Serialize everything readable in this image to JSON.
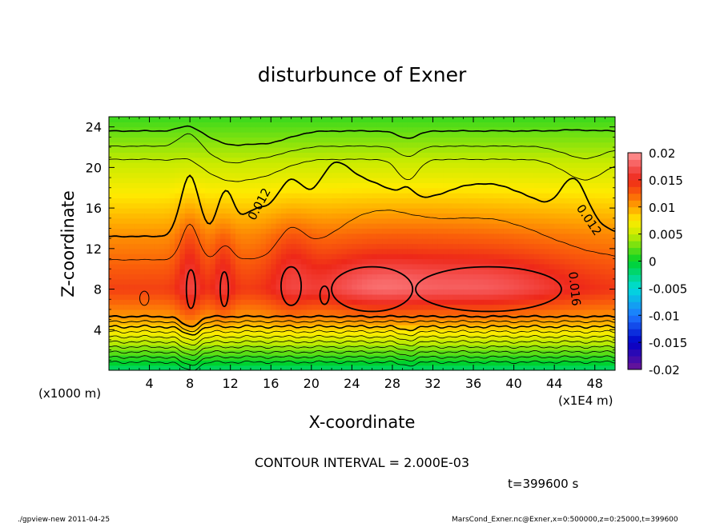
{
  "chart_data": {
    "type": "heatmap",
    "title": "disturbunce of Exner",
    "xlabel": "X-coordinate",
    "ylabel": "Z-coordinate",
    "x_unit_label": "(x1E4 m)",
    "y_unit_label": "(x1000 m)",
    "xlim": [
      0,
      50
    ],
    "ylim": [
      0,
      25
    ],
    "x_ticks": [
      4,
      8,
      12,
      16,
      20,
      24,
      28,
      32,
      36,
      40,
      44,
      48
    ],
    "y_ticks": [
      4,
      8,
      12,
      16,
      20,
      24
    ],
    "x_tick_labels": [
      "4",
      "8",
      "12",
      "16",
      "20",
      "24",
      "28",
      "32",
      "36",
      "40",
      "44",
      "48"
    ],
    "y_tick_labels": [
      "4",
      "8",
      "12",
      "16",
      "20",
      "24"
    ],
    "contour_interval_text": "CONTOUR INTERVAL = 2.000E-03",
    "time_text": "t=399600 s",
    "contour_labels": [
      {
        "text": "0.012",
        "x": 15.2,
        "z": 16.2,
        "angle": -62
      },
      {
        "text": "0.012",
        "x": 47.1,
        "z": 14.6,
        "angle": 56
      },
      {
        "text": "0.016",
        "x": 45.6,
        "z": 8.0,
        "angle": 84
      }
    ],
    "colorbar": {
      "min": -0.02,
      "max": 0.02,
      "tick_values": [
        0.02,
        0.015,
        0.01,
        0.005,
        0,
        -0.005,
        -0.01,
        -0.015,
        -0.02
      ],
      "tick_labels": [
        "0.02",
        "0.015",
        "0.01",
        "0.005",
        "0",
        "-0.005",
        "-0.01",
        "-0.015",
        "-0.02"
      ]
    }
  },
  "footer": {
    "left": "./gpview-new  2011-04-25",
    "right": "MarsCond_Exner.nc@Exner,x=0:500000,z=0:25000,t=399600"
  }
}
